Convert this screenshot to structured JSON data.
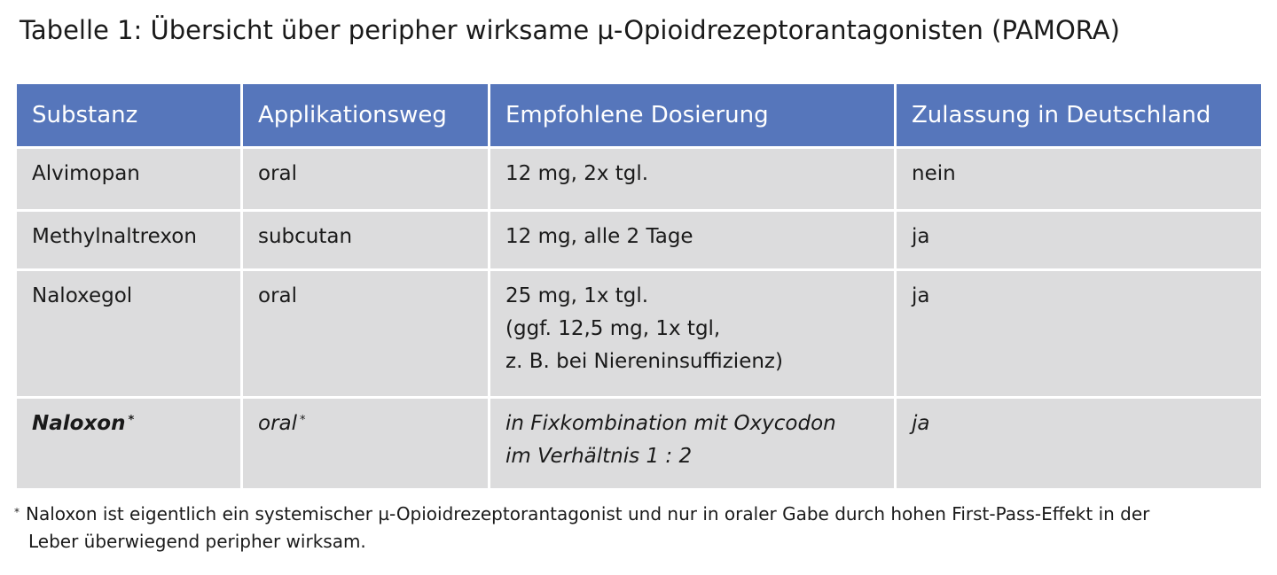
{
  "title": "Tabelle 1: Übersicht über peripher wirksame µ-Opioidrezeptorantagonisten (PAMORA)",
  "table": {
    "headers": [
      "Substanz",
      "Applikationsweg",
      "Empfohlene Dosierung",
      "Zulassung in Deutschland"
    ],
    "rows": [
      {
        "substance": "Alvimopan",
        "route": "oral",
        "dosage": [
          "12 mg, 2x tgl."
        ],
        "approval": "nein"
      },
      {
        "substance": "Methylnaltrexon",
        "route": "subcutan",
        "dosage": [
          "12 mg, alle 2 Tage"
        ],
        "approval": "ja"
      },
      {
        "substance": "Naloxegol",
        "route": "oral",
        "dosage": [
          "25 mg, 1x tgl.",
          "(ggf. 12,5 mg, 1x tgl,",
          "z. B. bei Niereninsuffizienz)"
        ],
        "approval": "ja"
      },
      {
        "substance": "Naloxon",
        "substance_marker": "*",
        "route": "oral",
        "route_marker": "*",
        "dosage": [
          "in Fixkombination mit Oxycodon",
          "im Verhältnis 1 : 2"
        ],
        "approval": "ja"
      }
    ]
  },
  "footnote": {
    "marker": "*",
    "lines": [
      "Naloxon ist eigentlich ein systemischer µ-Opioidrezeptorantagonist und nur in oraler Gabe durch hohen First-Pass-Effekt in der",
      "Leber überwiegend peripher wirksam."
    ]
  },
  "colors": {
    "header_background": "#5676bb",
    "header_text": "#ffffff",
    "cell_background": "#dcdcdd"
  }
}
